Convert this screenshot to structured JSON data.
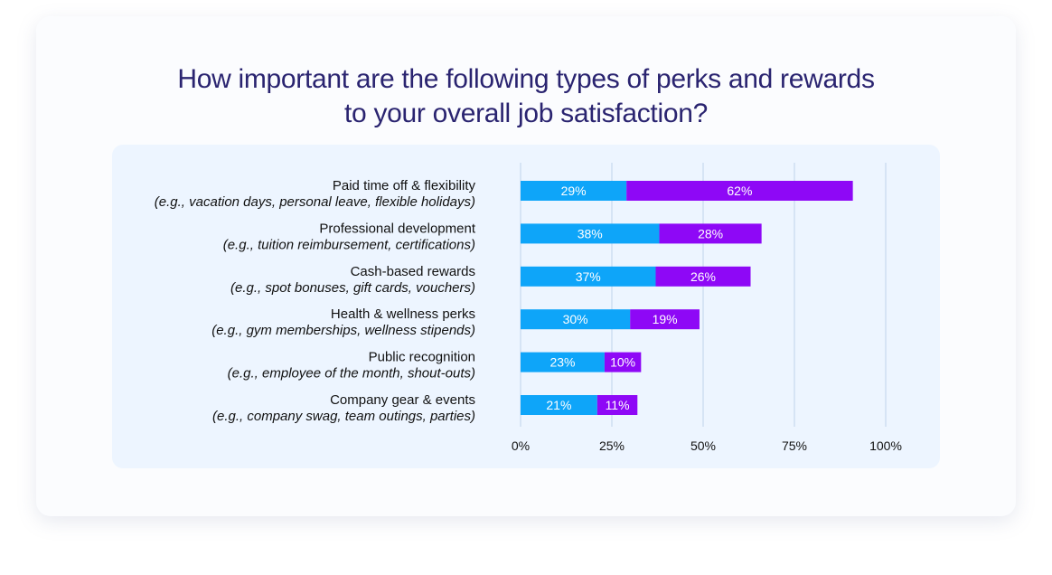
{
  "title_lines": [
    "How important are the following types of perks and rewards",
    "to your overall job satisfaction?"
  ],
  "chart_data": {
    "type": "bar",
    "orientation": "horizontal",
    "stacked": true,
    "categories": [
      {
        "label": "Paid time off & flexibility",
        "sublabel": "(e.g., vacation days, personal leave, flexible holidays)"
      },
      {
        "label": "Professional development",
        "sublabel": "(e.g., tuition reimbursement, certifications)"
      },
      {
        "label": "Cash-based rewards",
        "sublabel": "(e.g., spot bonuses, gift cards, vouchers)"
      },
      {
        "label": "Health & wellness perks",
        "sublabel": "(e.g., gym memberships, wellness stipends)"
      },
      {
        "label": "Public recognition",
        "sublabel": "(e.g., employee of the month, shout-outs)"
      },
      {
        "label": "Company gear & events",
        "sublabel": "(e.g., company swag, team outings, parties)"
      }
    ],
    "series": [
      {
        "values": [
          29,
          38,
          37,
          30,
          23,
          21
        ],
        "color": "#0ea5f9"
      },
      {
        "values": [
          62,
          28,
          26,
          19,
          10,
          11
        ],
        "color": "#8e08f6"
      }
    ],
    "value_suffix": "%",
    "xlim": [
      0,
      100
    ],
    "x_ticks": [
      0,
      25,
      50,
      75,
      100
    ],
    "x_tick_labels": [
      "0%",
      "25%",
      "50%",
      "75%",
      "100%"
    ],
    "grid": true,
    "grid_color": "#d6e4f5"
  }
}
